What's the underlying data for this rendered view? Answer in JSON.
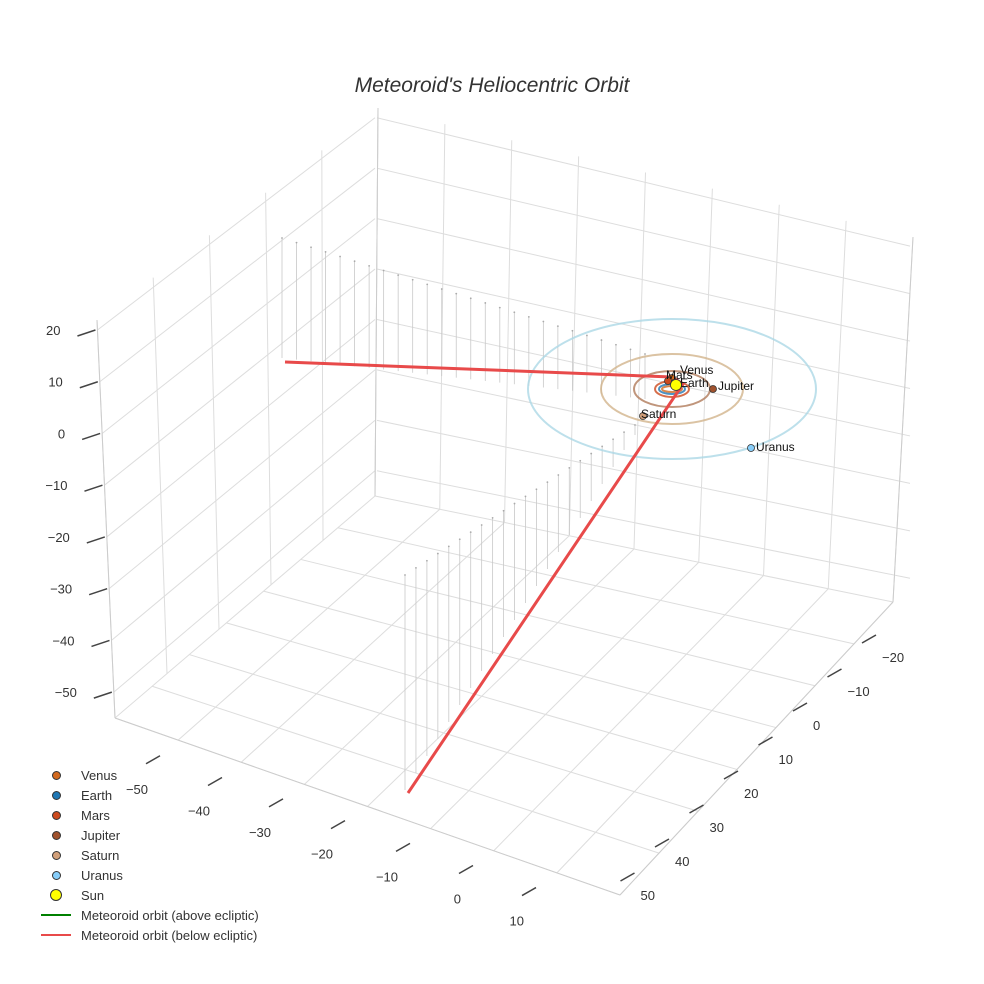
{
  "chart_data": {
    "type": "scatter3d",
    "title": "Meteoroid's Heliocentric Orbit",
    "axes": {
      "x": {
        "ticks": [
          -50,
          -40,
          -30,
          -20,
          -10,
          0,
          10
        ]
      },
      "y": {
        "ticks": [
          -20,
          -10,
          0,
          10,
          20,
          30,
          40,
          50
        ]
      },
      "z": {
        "ticks": [
          20,
          10,
          0,
          -10,
          -20,
          -30,
          -40,
          -50
        ]
      },
      "showgrid": true
    },
    "sun": {
      "name": "Sun",
      "color": "#ffff00"
    },
    "planets": [
      {
        "name": "Venus",
        "color": "#d2691e",
        "orbit_color": "#d2691e"
      },
      {
        "name": "Earth",
        "color": "#1f77b4",
        "orbit_color": "#1f77b4"
      },
      {
        "name": "Mars",
        "color": "#cc4a1e",
        "orbit_color": "#cc4a1e"
      },
      {
        "name": "Jupiter",
        "color": "#a0522d",
        "orbit_color": "#b07a5a"
      },
      {
        "name": "Saturn",
        "color": "#d2a07a",
        "orbit_color": "#d2b48c"
      },
      {
        "name": "Uranus",
        "color": "#87cefa",
        "orbit_color": "#add8e6"
      }
    ],
    "meteoroid": {
      "above_name": "Meteoroid orbit (above ecliptic)",
      "above_color": "#008000",
      "below_name": "Meteoroid orbit (below ecliptic)",
      "below_color": "#e84a4a"
    },
    "legend_position": "bottom-left",
    "legend": [
      {
        "label": "Venus",
        "kind": "dot",
        "color": "#d2691e",
        "size": 9
      },
      {
        "label": "Earth",
        "kind": "dot",
        "color": "#1f77b4",
        "size": 9
      },
      {
        "label": "Mars",
        "kind": "dot",
        "color": "#cc4a1e",
        "size": 9
      },
      {
        "label": "Jupiter",
        "kind": "dot",
        "color": "#a0522d",
        "size": 9
      },
      {
        "label": "Saturn",
        "kind": "dot",
        "color": "#d2a07a",
        "size": 9
      },
      {
        "label": "Uranus",
        "kind": "dot",
        "color": "#87cefa",
        "size": 9
      },
      {
        "label": "Sun",
        "kind": "dot",
        "color": "#ffff00",
        "size": 12
      },
      {
        "label": "Meteoroid orbit (above ecliptic)",
        "kind": "line",
        "color": "#008000"
      },
      {
        "label": "Meteoroid orbit (below ecliptic)",
        "kind": "line",
        "color": "#e84a4a"
      }
    ]
  }
}
